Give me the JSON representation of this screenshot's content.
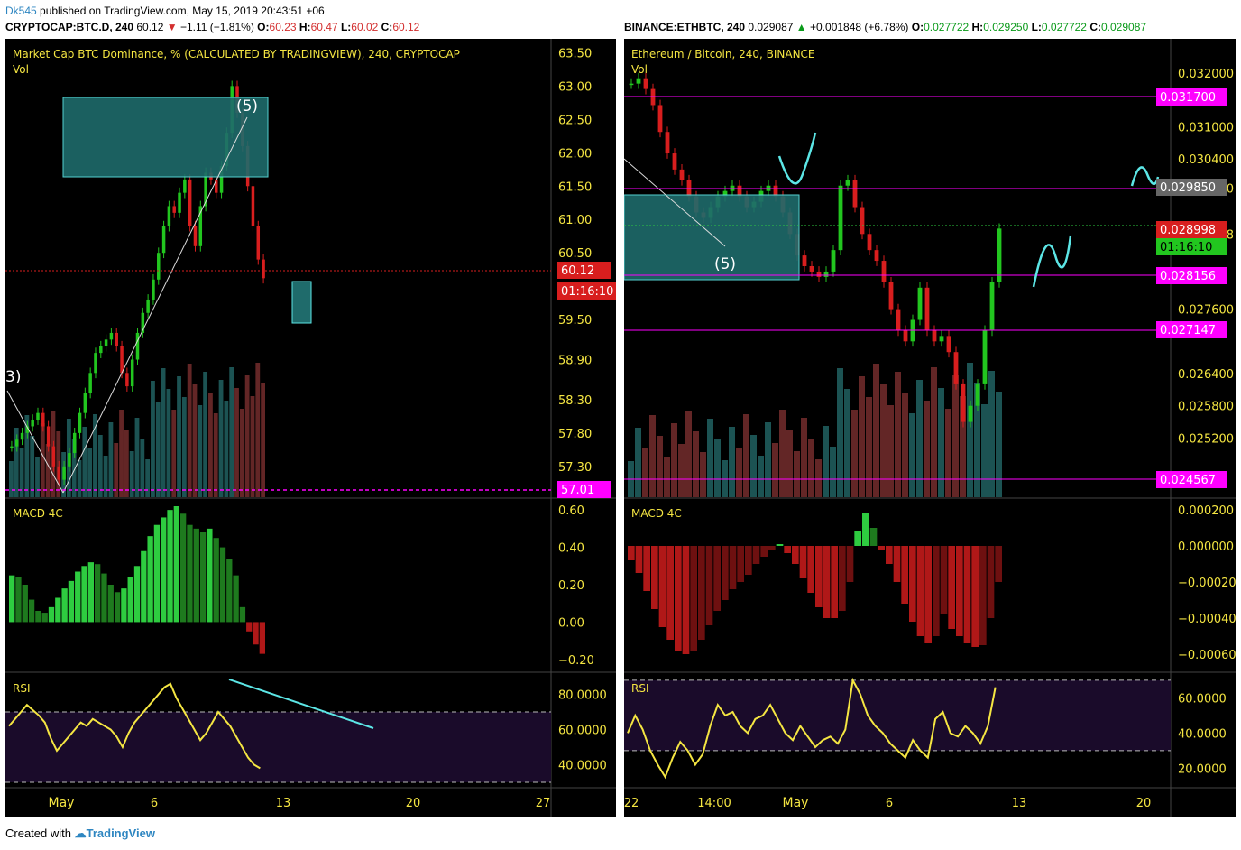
{
  "header": {
    "user": "Dk545",
    "published": "published on TradingView.com, May 15, 2019 20:43:51 +06",
    "left_symbol": "CRYPTOCAP:BTC.D, 240",
    "left_last": "60.12",
    "left_change": "−1.11 (−1.81%)",
    "left_o": "O:",
    "left_o_val": "60.23",
    "left_h": "H:",
    "left_h_val": "60.47",
    "left_l": "L:",
    "left_l_val": "60.02",
    "left_c": "C:",
    "left_c_val": "60.12",
    "right_symbol": "BINANCE:ETHBTC, 240",
    "right_last": "0.029087",
    "right_change": "+0.001848 (+6.78%)",
    "right_o": "O:",
    "right_o_val": "0.027722",
    "right_h": "H:",
    "right_h_val": "0.029250",
    "right_l": "L:",
    "right_l_val": "0.027722",
    "right_c": "C:",
    "right_c_val": "0.029087"
  },
  "footer": {
    "created_with": "Created with",
    "brand": "TradingView"
  },
  "colors": {
    "bull": "#22c61f",
    "bear": "#d81e1e",
    "accent": "#5ce6e6",
    "magenta": "#ff00ff",
    "axis_text": "#f5e642",
    "rsi_line": "#f5e642"
  },
  "chart_data": [
    {
      "type": "candlestick",
      "title": "Market Cap BTC Dominance, % (CALCULATED BY TRADINGVIEW), 240, CRYPTOCAP",
      "volume_label": "Vol",
      "y_ticks": [
        "63.50",
        "63.00",
        "62.50",
        "62.00",
        "61.50",
        "61.00",
        "60.50",
        "59.50",
        "58.90",
        "58.30",
        "57.80",
        "57.30"
      ],
      "x_ticks": [
        "May",
        "6",
        "13",
        "20",
        "27"
      ],
      "ylim": [
        57.0,
        63.6
      ],
      "last_price_tag": "60.12",
      "countdown_tag": "01:16:10",
      "level_tag": "57.01",
      "wave_labels": [
        "(5)",
        "3)"
      ],
      "close_series": [
        57.6,
        57.7,
        57.8,
        57.9,
        58.0,
        58.1,
        57.9,
        57.6,
        57.3,
        57.1,
        57.3,
        57.5,
        57.8,
        58.1,
        58.4,
        58.7,
        59.0,
        59.1,
        59.2,
        59.3,
        59.1,
        58.7,
        58.5,
        58.9,
        59.3,
        59.6,
        59.8,
        60.1,
        60.5,
        60.9,
        61.2,
        61.1,
        61.4,
        61.6,
        60.9,
        60.6,
        61.2,
        61.7,
        61.6,
        61.4,
        61.8,
        62.3,
        63.0,
        62.6,
        62.1,
        61.5,
        60.9,
        60.4,
        60.12
      ],
      "indicators": [
        {
          "name": "MACD 4C",
          "y_ticks": [
            "0.60",
            "0.40",
            "0.20",
            "0.00",
            "−0.20"
          ],
          "ylim": [
            -0.22,
            0.62
          ],
          "histogram": [
            0.25,
            0.24,
            0.2,
            0.12,
            0.06,
            0.05,
            0.08,
            0.13,
            0.18,
            0.22,
            0.27,
            0.3,
            0.32,
            0.31,
            0.26,
            0.2,
            0.16,
            0.18,
            0.24,
            0.3,
            0.38,
            0.46,
            0.52,
            0.56,
            0.6,
            0.62,
            0.58,
            0.52,
            0.5,
            0.48,
            0.5,
            0.45,
            0.4,
            0.34,
            0.25,
            0.08,
            -0.05,
            -0.12,
            -0.17
          ]
        },
        {
          "name": "RSI",
          "y_ticks": [
            "80.0000",
            "60.0000",
            "40.0000"
          ],
          "ylim": [
            30,
            90
          ],
          "bands": [
            70,
            30
          ],
          "series": [
            62,
            66,
            70,
            74,
            71,
            68,
            64,
            55,
            48,
            52,
            56,
            60,
            64,
            62,
            66,
            64,
            62,
            60,
            56,
            50,
            58,
            64,
            68,
            72,
            76,
            80,
            84,
            86,
            78,
            72,
            66,
            60,
            54,
            58,
            64,
            70,
            66,
            62,
            56,
            50,
            44,
            40,
            38
          ]
        }
      ]
    },
    {
      "type": "candlestick",
      "title": "Ethereum / Bitcoin, 240, BINANCE",
      "volume_label": "Vol",
      "y_ticks": [
        "0.032000",
        "0.031000",
        "0.030400",
        "0.029850",
        "0.028998",
        "0.027600",
        "0.026400",
        "0.025800",
        "0.025200"
      ],
      "x_ticks": [
        "22",
        "14:00",
        "May",
        "6",
        "13",
        "20"
      ],
      "ylim": [
        0.0243,
        0.0325
      ],
      "price_tags": [
        "0.031700",
        "0.029850",
        "0.028998",
        "0.028156",
        "0.027147",
        "0.024567"
      ],
      "countdown_tag": "01:16:10",
      "wave_labels": [
        "(5)"
      ],
      "close_series": [
        0.0318,
        0.0319,
        0.0317,
        0.0314,
        0.0309,
        0.0305,
        0.0302,
        0.03,
        0.0297,
        0.0294,
        0.0293,
        0.0295,
        0.0297,
        0.0298,
        0.0299,
        0.0297,
        0.0295,
        0.0296,
        0.0298,
        0.0299,
        0.0297,
        0.0294,
        0.029,
        0.0286,
        0.0284,
        0.0283,
        0.0282,
        0.0283,
        0.0287,
        0.0299,
        0.03,
        0.0295,
        0.029,
        0.0287,
        0.0285,
        0.0281,
        0.0276,
        0.0272,
        0.027,
        0.0274,
        0.028,
        0.0272,
        0.027,
        0.0271,
        0.0268,
        0.0262,
        0.0255,
        0.0258,
        0.0262,
        0.0272,
        0.0281,
        0.0291
      ],
      "indicators": [
        {
          "name": "MACD 4C",
          "y_ticks": [
            "0.000200",
            "0.000000",
            "−0.000200",
            "−0.000400",
            "−0.000600"
          ],
          "ylim": [
            -0.00065,
            0.00022
          ],
          "histogram": [
            -8e-05,
            -0.00015,
            -0.00025,
            -0.00035,
            -0.00045,
            -0.00052,
            -0.00058,
            -0.0006,
            -0.00058,
            -0.00052,
            -0.00044,
            -0.00036,
            -0.0003,
            -0.00024,
            -0.0002,
            -0.00016,
            -0.0001,
            -6e-05,
            -2e-05,
            1e-05,
            -4e-05,
            -0.0001,
            -0.00018,
            -0.00026,
            -0.00034,
            -0.0004,
            -0.0004,
            -0.00036,
            -0.0002,
            8e-05,
            0.00018,
            0.0001,
            -2e-05,
            -0.0001,
            -0.0002,
            -0.00032,
            -0.00042,
            -0.0005,
            -0.00054,
            -0.0005,
            -0.00038,
            -0.00046,
            -0.0005,
            -0.00054,
            -0.00056,
            -0.00055,
            -0.0004,
            -0.0002
          ]
        },
        {
          "name": "RSI",
          "y_ticks": [
            "60.0000",
            "40.0000",
            "20.0000"
          ],
          "ylim": [
            12,
            72
          ],
          "bands": [
            70,
            30
          ],
          "series": [
            40,
            50,
            42,
            30,
            22,
            15,
            26,
            35,
            30,
            22,
            28,
            44,
            56,
            50,
            52,
            44,
            40,
            48,
            50,
            56,
            48,
            40,
            36,
            44,
            38,
            32,
            36,
            38,
            34,
            42,
            70,
            62,
            50,
            44,
            40,
            34,
            30,
            26,
            36,
            30,
            26,
            48,
            52,
            40,
            38,
            44,
            40,
            34,
            44,
            66
          ]
        }
      ]
    }
  ]
}
